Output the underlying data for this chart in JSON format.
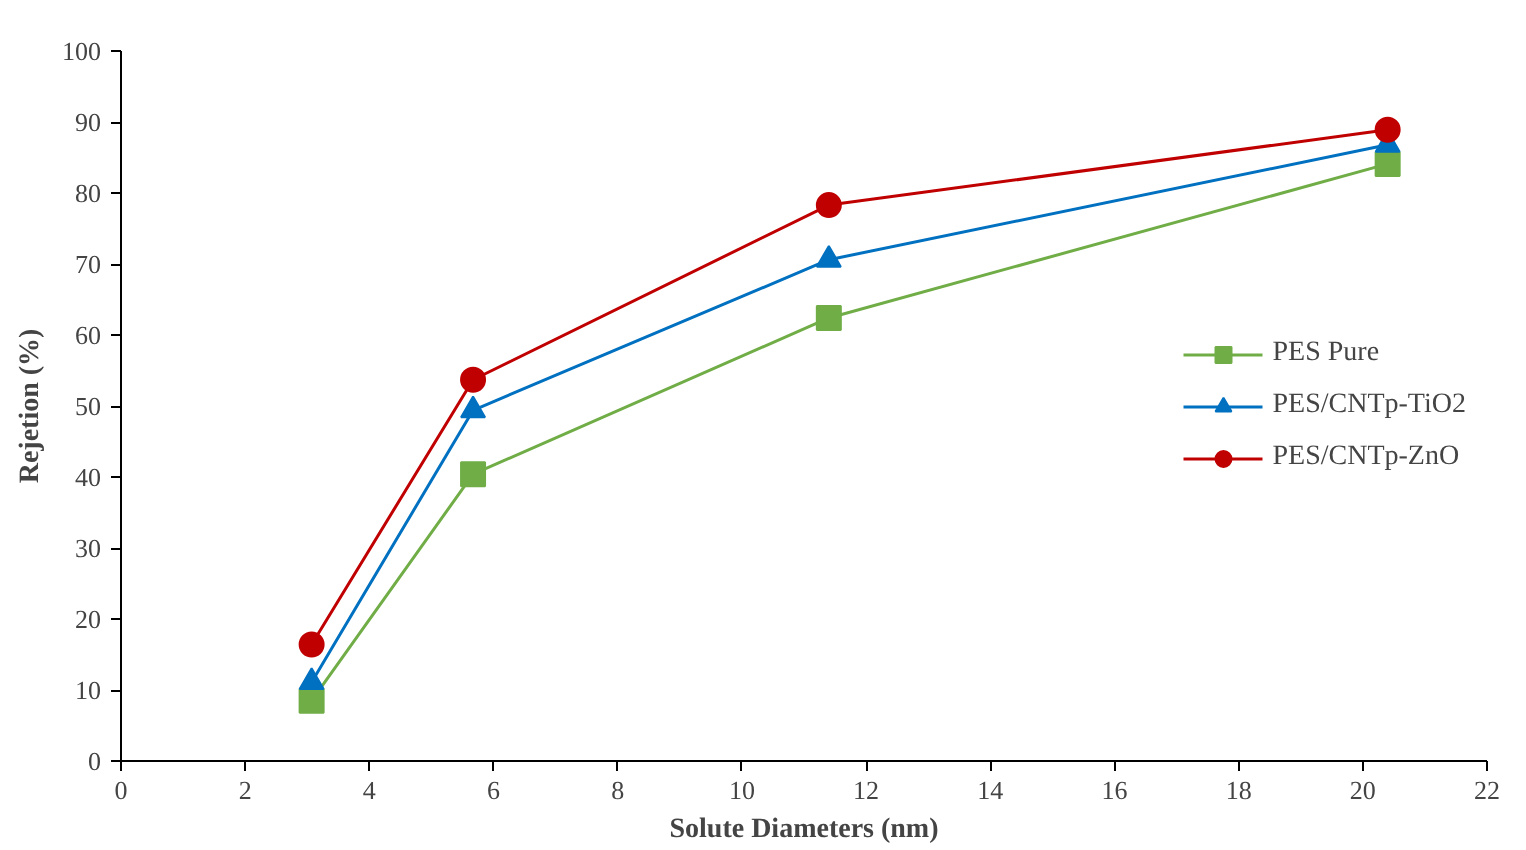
{
  "chart_data": {
    "type": "line",
    "xlabel": "Solute Diameters (nm)",
    "ylabel": "Rejetion (%)",
    "x": [
      3.07,
      5.67,
      11.4,
      20.4
    ],
    "series": [
      {
        "name": "PES Pure",
        "color": "#70ad47",
        "marker": "square",
        "values": [
          8.5,
          40.4,
          62.4,
          84.1
        ]
      },
      {
        "name": "PES/CNTp-TiO2",
        "color": "#0070c0",
        "marker": "triangle",
        "values": [
          11.1,
          49.4,
          70.6,
          86.8
        ]
      },
      {
        "name": "PES/CNTp-ZnO",
        "color": "#c00000",
        "marker": "circle",
        "values": [
          16.4,
          53.7,
          78.3,
          88.9
        ]
      }
    ],
    "xlim": [
      0,
      22
    ],
    "xticks": [
      0,
      2,
      4,
      6,
      8,
      10,
      12,
      14,
      16,
      18,
      20,
      22
    ],
    "ylim": [
      0,
      100
    ],
    "yticks": [
      0,
      10,
      20,
      30,
      40,
      50,
      60,
      70,
      80,
      90,
      100
    ],
    "grid": false,
    "legend": "right",
    "line_style": "solid"
  }
}
